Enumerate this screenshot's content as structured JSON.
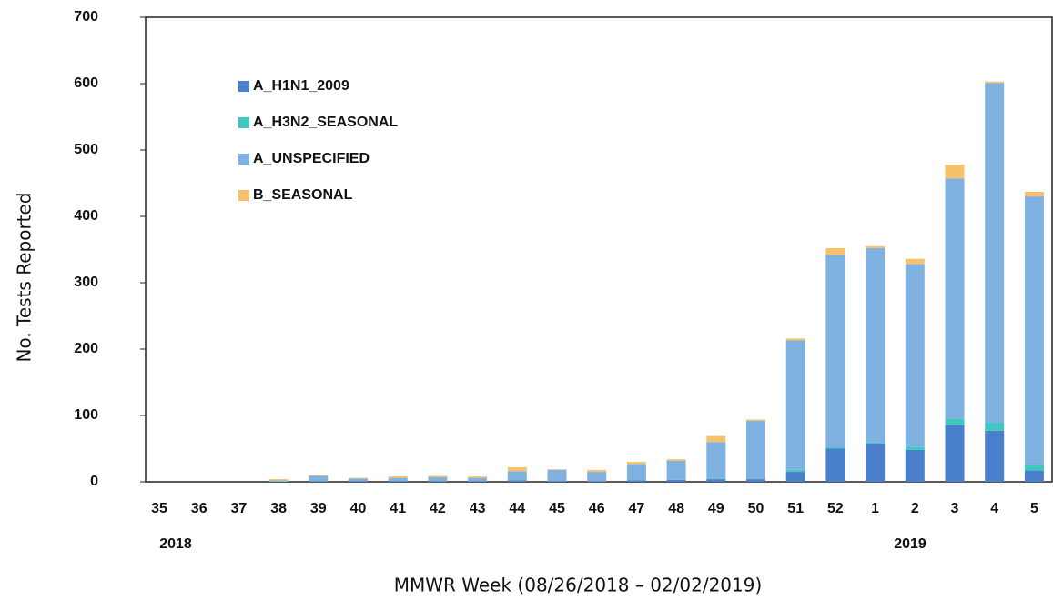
{
  "chart_data": {
    "type": "stacked_bar",
    "xlabel": "MMWR Week (08/26/2018 – 02/02/2019)",
    "ylabel": "No. Tests Reported",
    "categories": [
      "35",
      "36",
      "37",
      "38",
      "39",
      "40",
      "41",
      "42",
      "43",
      "44",
      "45",
      "46",
      "47",
      "48",
      "49",
      "50",
      "51",
      "52",
      "1",
      "2",
      "3",
      "4",
      "5"
    ],
    "annotations": [
      "2018",
      "2019"
    ],
    "series": [
      {
        "name": "A_H1N1_2009",
        "color": "#4a7fcb",
        "values": [
          0,
          0,
          0,
          0,
          1,
          1,
          1,
          1,
          1,
          2,
          1,
          1,
          2,
          3,
          4,
          4,
          15,
          50,
          58,
          48,
          85,
          77,
          17
        ]
      },
      {
        "name": "A_H3N2_SEASONAL",
        "color": "#40c8c0",
        "values": [
          0,
          0,
          0,
          0,
          0,
          0,
          0,
          0,
          0,
          0,
          0,
          0,
          0,
          0,
          1,
          0,
          3,
          2,
          2,
          5,
          10,
          12,
          8
        ]
      },
      {
        "name": "A_UNSPECIFIED",
        "color": "#7fb2e0",
        "values": [
          0,
          0,
          0,
          2,
          8,
          4,
          5,
          6,
          5,
          14,
          17,
          14,
          25,
          29,
          55,
          88,
          195,
          290,
          292,
          275,
          362,
          512,
          405
        ]
      },
      {
        "name": "B_SEASONAL",
        "color": "#f7c06b",
        "values": [
          0,
          0,
          0,
          2,
          1,
          1,
          2,
          2,
          2,
          6,
          1,
          3,
          3,
          2,
          9,
          2,
          3,
          10,
          3,
          8,
          21,
          2,
          7
        ]
      }
    ],
    "ylim": [
      0,
      700
    ],
    "yticks": [
      0,
      100,
      200,
      300,
      400,
      500,
      600,
      700
    ],
    "grid": false,
    "legend": "upper left"
  }
}
